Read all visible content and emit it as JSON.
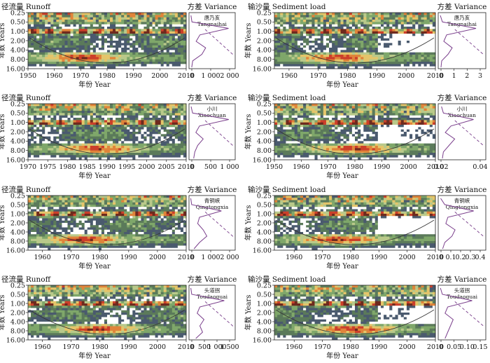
{
  "colors": {
    "levels": [
      "#ffffff",
      "#4a5a6e",
      "#5b7a5a",
      "#7fa76a",
      "#b9c98a",
      "#e4c56a",
      "#e0843a",
      "#cc3f2a",
      "#6e2a1e"
    ],
    "coi_line": "#333333",
    "variance_solid": "#7a3f8c",
    "variance_dashed": "#7a3f8c"
  },
  "chart_data": [
    {
      "type": "heatmap",
      "title": "径流量 Runoff",
      "station": {
        "cn": "唐乃亥",
        "en": "Tangnaihai"
      },
      "xlabel": "年份 Year",
      "ylabel": "年数 Years",
      "xlim": [
        1950,
        2010
      ],
      "x_ticks": [
        "1950",
        "1960",
        "1970",
        "1980",
        "1990",
        "2000",
        "2010"
      ],
      "y_ticks": [
        "0.25",
        "0.50",
        "1.00",
        "2.00",
        "4.00",
        "8.00",
        "16.00"
      ],
      "variance_title": "方差 Variance",
      "variance_ticks": [
        "0",
        "1 000",
        "2 000"
      ],
      "variance_max": 2200,
      "variance_peak_period": 1.0,
      "variance_profile": [
        30,
        80,
        2000,
        500,
        300,
        800,
        600,
        120,
        70
      ]
    },
    {
      "type": "heatmap",
      "title": "输沙量 Sediment load",
      "station": {
        "cn": "唐乃亥",
        "en": "Tangnaihai"
      },
      "xlabel": "年份 Year",
      "ylabel": "年数 Years",
      "xlim": [
        1955,
        2010
      ],
      "x_ticks": [
        "1960",
        "1970",
        "1980",
        "1990",
        "2000",
        "2010"
      ],
      "y_ticks": [
        "0.25",
        "0.50",
        "1.00",
        "2.00",
        "4.00",
        "8.00",
        "16.00"
      ],
      "variance_title": "方差 Variance",
      "variance_ticks": [
        "0",
        "1",
        "2",
        "3"
      ],
      "variance_max": 3.1,
      "variance_peak_period": 1.0,
      "variance_profile": [
        0.05,
        0.2,
        2.6,
        0.5,
        0.3,
        0.9,
        0.6,
        0.15,
        0.1
      ]
    },
    {
      "type": "heatmap",
      "title": "径流量 Runoff",
      "station": {
        "cn": "小川",
        "en": "Xiaochuan"
      },
      "xlabel": "年份 Year",
      "ylabel": "年数 Years",
      "xlim": [
        1970,
        2010
      ],
      "x_ticks": [
        "1970",
        "1975",
        "1980",
        "1985",
        "1990",
        "1995",
        "2000",
        "2005",
        "2010"
      ],
      "y_ticks": [
        "0.25",
        "0.50",
        "1.00",
        "2.00",
        "4.00",
        "8.00",
        "16.00"
      ],
      "variance_title": "方差 Variance",
      "variance_ticks": [
        "0",
        "500",
        "1 000"
      ],
      "variance_max": 1150,
      "variance_peak_period": 1.0,
      "variance_profile": [
        20,
        60,
        1050,
        250,
        150,
        350,
        200,
        120,
        90
      ]
    },
    {
      "type": "heatmap",
      "title": "输沙量 Sediment load",
      "station": {
        "cn": "小川",
        "en": "Xiaochuan"
      },
      "xlabel": "年份 Year",
      "ylabel": "年数 Years",
      "xlim": [
        1950,
        2010
      ],
      "x_ticks": [
        "1950",
        "1960",
        "1970",
        "1980",
        "1990",
        "2000",
        "2010"
      ],
      "y_ticks": [
        "0.25",
        "0.50",
        "1.00",
        "2.00",
        "4.00",
        "8.00",
        "16.00"
      ],
      "variance_title": "方差 Variance",
      "variance_ticks": [
        "0.02",
        "0.04"
      ],
      "variance_max": 0.046,
      "variance_peak_period": 1.0,
      "variance_profile": [
        0.002,
        0.004,
        0.036,
        0.012,
        0.006,
        0.016,
        0.01,
        0.004,
        0.003
      ]
    },
    {
      "type": "heatmap",
      "title": "径流量 Runoff",
      "station": {
        "cn": "青铜峡",
        "en": "Qingtongxia"
      },
      "xlabel": "年份 Year",
      "ylabel": "年数 Years",
      "xlim": [
        1955,
        2010
      ],
      "x_ticks": [
        "1960",
        "1970",
        "1980",
        "1990",
        "2000",
        "2010"
      ],
      "y_ticks": [
        "0.25",
        "0.50",
        "1.00",
        "2.00",
        "4.00",
        "8.00",
        "16.00"
      ],
      "variance_title": "方差 Variance",
      "variance_ticks": [
        "0",
        "1 000",
        "2 000"
      ],
      "variance_max": 2300,
      "variance_peak_period": 1.0,
      "variance_profile": [
        20,
        70,
        1700,
        500,
        400,
        700,
        900,
        500,
        200
      ]
    },
    {
      "type": "heatmap",
      "title": "输沙量 Sediment load",
      "station": {
        "cn": "青铜峡",
        "en": "Qingtongxia"
      },
      "xlabel": "年份 Year",
      "ylabel": "年数 Years",
      "xlim": [
        1953,
        2010
      ],
      "x_ticks": [
        "1960",
        "1970",
        "1980",
        "1990",
        "2000",
        "2010"
      ],
      "y_ticks": [
        "0.25",
        "0.50",
        "1.00",
        "2.00",
        "4.00",
        "8.00",
        "16.00"
      ],
      "variance_title": "方差 Variance",
      "variance_ticks": [
        "0",
        "0.1",
        "0.2",
        "0.3",
        "0.4"
      ],
      "variance_max": 0.42,
      "variance_peak_period": 1.0,
      "variance_profile": [
        0.01,
        0.05,
        0.33,
        0.08,
        0.06,
        0.15,
        0.12,
        0.05,
        0.03
      ]
    },
    {
      "type": "heatmap",
      "title": "径流量 Runoff",
      "station": {
        "cn": "头道拐",
        "en": "Toudaoguai"
      },
      "xlabel": "年份 Year",
      "ylabel": "年数 Years",
      "xlim": [
        1955,
        2010
      ],
      "x_ticks": [
        "1960",
        "1970",
        "1980",
        "1990",
        "2000",
        "2010"
      ],
      "y_ticks": [
        "0.25",
        "0.50",
        "1.00",
        "2.00",
        "4.00",
        "8.00",
        "16.00"
      ],
      "variance_title": "方差 Variance",
      "variance_ticks": [
        "0",
        "500",
        "1 000",
        "1 500"
      ],
      "variance_max": 1550,
      "variance_peak_period": 1.0,
      "variance_profile": [
        15,
        50,
        1250,
        350,
        250,
        500,
        350,
        450,
        200
      ]
    },
    {
      "type": "heatmap",
      "title": "输沙量 Sediment load",
      "station": {
        "cn": "头道拐",
        "en": "Toudaoguai"
      },
      "xlabel": "年份 Year",
      "ylabel": "年数 Years",
      "xlim": [
        1953,
        2010
      ],
      "x_ticks": [
        "1960",
        "1970",
        "1980",
        "1990",
        "2000",
        "2010"
      ],
      "y_ticks": [
        "0.25",
        "0.50",
        "1.00",
        "2.00",
        "4.00",
        "8.00",
        "16.00"
      ],
      "variance_title": "方差 Variance",
      "variance_ticks": [
        "0",
        "0.05",
        "0.10",
        "0.15"
      ],
      "variance_max": 0.16,
      "variance_peak_period": 1.0,
      "variance_profile": [
        0.003,
        0.01,
        0.12,
        0.03,
        0.02,
        0.05,
        0.04,
        0.03,
        0.02
      ]
    }
  ]
}
